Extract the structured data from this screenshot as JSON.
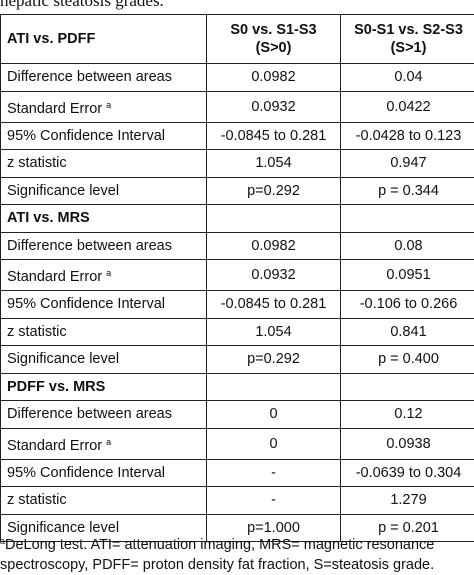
{
  "caption": "hepatic steatosis grades.",
  "header": {
    "corner": "ATI vs. PDFF",
    "col1_line1": "S0 vs. S1-S3",
    "col1_line2": "(S>0)",
    "col2_line1": "S0-S1 vs. S2-S3",
    "col2_line2": "(S>1)"
  },
  "labels": {
    "diff": "Difference between areas",
    "se": "Standard Error",
    "se_note": "a",
    "ci": "95% Confidence Interval",
    "z": "z statistic",
    "sig": "Significance level"
  },
  "sections": [
    {
      "title": "ATI vs. PDFF",
      "diff": [
        "0.0982",
        "0.04"
      ],
      "se": [
        "0.0932",
        "0.0422"
      ],
      "ci": [
        "-0.0845 to 0.281",
        "-0.0428 to 0.123"
      ],
      "z": [
        "1.054",
        "0.947"
      ],
      "sig": [
        "p=0.292",
        "p = 0.344"
      ]
    },
    {
      "title": "ATI vs. MRS",
      "diff": [
        "0.0982",
        "0.08"
      ],
      "se": [
        "0.0932",
        "0.0951"
      ],
      "ci": [
        "-0.0845 to 0.281",
        "-0.106 to 0.266"
      ],
      "z": [
        "1.054",
        "0.841"
      ],
      "sig": [
        "p=0.292",
        "p = 0.400"
      ]
    },
    {
      "title": "PDFF vs. MRS",
      "diff": [
        "0",
        "0.12"
      ],
      "se": [
        "0",
        "0.0938"
      ],
      "ci": [
        "-",
        "-0.0639 to 0.304"
      ],
      "z": [
        "-",
        "1.279"
      ],
      "sig": [
        "p=1.000",
        "p = 0.201"
      ]
    }
  ],
  "footnote": {
    "mark": "a",
    "line1": "DeLong test. ATI= attenuation imaging, MRS= magnetic resonance",
    "line2": "spectroscopy, PDFF= proton density fat fraction, S=steatosis grade."
  }
}
